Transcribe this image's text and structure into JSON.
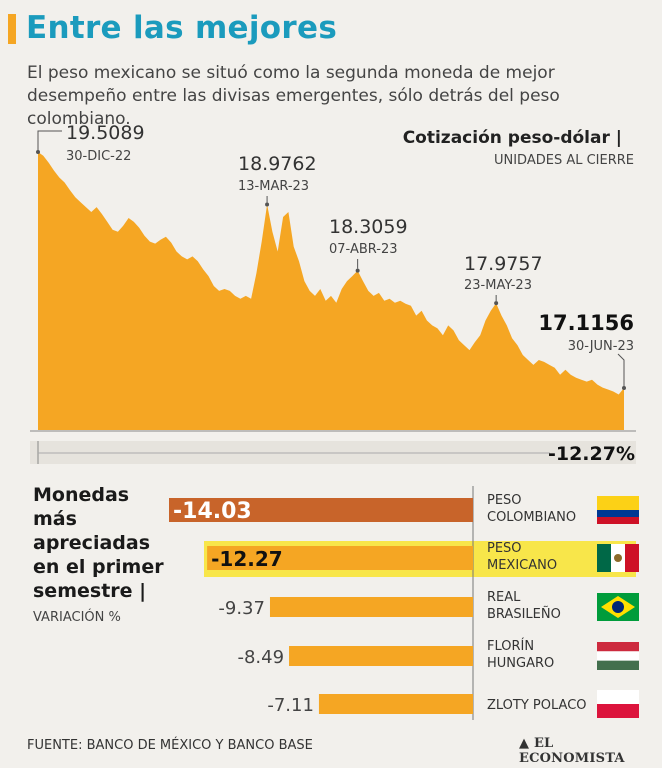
{
  "header": {
    "title": "Entre las mejores",
    "subtitle": "El peso mexicano se situó como la segunda moneda de mejor desempeño entre las divisas emergentes, sólo detrás del peso colombiano."
  },
  "colors": {
    "accent_orange": "#f5a623",
    "title_blue": "#1b9bbd",
    "bar_highlight": "#c8642a",
    "row_highlight": "#f8e64a",
    "background": "#f2f0ec"
  },
  "chart_data": [
    {
      "type": "area",
      "title": "Cotización peso-dólar |",
      "subtitle": "UNIDADES AL CIERRE",
      "ylim": [
        16.0,
        19.6
      ],
      "x_range": [
        "30-DIC-22",
        "30-JUN-23"
      ],
      "values": [
        19.5089,
        19.47,
        19.4,
        19.32,
        19.25,
        19.2,
        19.12,
        19.05,
        19.0,
        18.95,
        18.9,
        18.95,
        18.88,
        18.8,
        18.72,
        18.7,
        18.76,
        18.84,
        18.8,
        18.74,
        18.66,
        18.6,
        18.58,
        18.62,
        18.65,
        18.59,
        18.5,
        18.45,
        18.42,
        18.45,
        18.4,
        18.32,
        18.25,
        18.15,
        18.1,
        18.12,
        18.1,
        18.05,
        18.02,
        18.05,
        18.02,
        18.28,
        18.6,
        18.9762,
        18.7,
        18.5,
        18.85,
        18.9,
        18.55,
        18.4,
        18.2,
        18.1,
        18.05,
        18.12,
        18.0,
        18.05,
        17.98,
        18.12,
        18.2,
        18.25,
        18.3059,
        18.2,
        18.1,
        18.05,
        18.08,
        18.0,
        18.02,
        17.98,
        18.0,
        17.97,
        17.95,
        17.85,
        17.9,
        17.8,
        17.75,
        17.72,
        17.65,
        17.75,
        17.7,
        17.6,
        17.55,
        17.5,
        17.58,
        17.65,
        17.8,
        17.9,
        17.9757,
        17.85,
        17.75,
        17.62,
        17.55,
        17.45,
        17.4,
        17.35,
        17.4,
        17.38,
        17.35,
        17.32,
        17.25,
        17.3,
        17.25,
        17.22,
        17.2,
        17.18,
        17.2,
        17.15,
        17.12,
        17.1,
        17.08,
        17.05,
        17.1156
      ],
      "annotations": [
        {
          "value": "19.5089",
          "date": "30-DIC-22"
        },
        {
          "value": "18.9762",
          "date": "13-MAR-23"
        },
        {
          "value": "18.3059",
          "date": "07-ABR-23"
        },
        {
          "value": "17.9757",
          "date": "23-MAY-23"
        },
        {
          "value": "17.1156",
          "date": "30-JUN-23"
        }
      ],
      "change_label": "-12.27%"
    },
    {
      "type": "bar",
      "title_lines": [
        "Monedas",
        "más",
        "apreciadas",
        "en el primer",
        "semestre |"
      ],
      "subtitle": "VARIACIÓN %",
      "xlim": [
        -14.03,
        0
      ],
      "categories": [
        {
          "line1": "PESO",
          "line2": "COLOMBIANO",
          "value": -14.03,
          "label": "-14.03",
          "flag": "colombia"
        },
        {
          "line1": "PESO",
          "line2": "MEXICANO",
          "value": -12.27,
          "label": "-12.27",
          "flag": "mexico"
        },
        {
          "line1": "REAL",
          "line2": "BRASILEÑO",
          "value": -9.37,
          "label": "-9.37",
          "flag": "brazil"
        },
        {
          "line1": "FLORÍN",
          "line2": "HUNGARO",
          "value": -8.49,
          "label": "-8.49",
          "flag": "hungary"
        },
        {
          "line1": "ZLOTY POLACO",
          "line2": "",
          "value": -7.11,
          "label": "-7.11",
          "flag": "poland"
        }
      ]
    }
  ],
  "footer": {
    "source": "FUENTE: BANCO DE MÉXICO Y BANCO BASE",
    "brand": "EL ECONOMISTA"
  }
}
